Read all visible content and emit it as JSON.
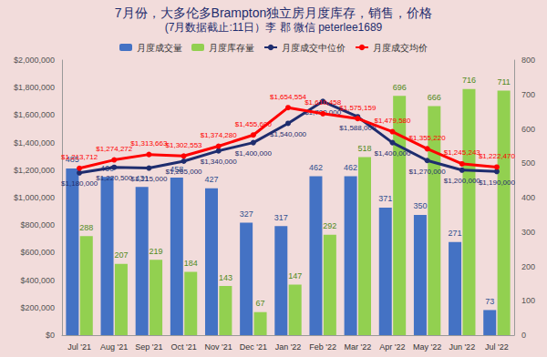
{
  "chart_data": {
    "type": "bar",
    "title": "7月份，大多伦多Brampton独立房月度库存，销售，价格",
    "subtitle": "(7月数据截止:11日）李 郡 微信 peterlee1689",
    "categories": [
      "Jul '21",
      "Aug '21",
      "Sep '21",
      "Oct '21",
      "Nov '21",
      "Dec '21",
      "Jan '22",
      "Feb '22",
      "Mar '22",
      "Apr '22",
      "May '22",
      "Jun '22",
      "Jul '22"
    ],
    "legend": "top",
    "grid": false,
    "data_labels": true,
    "series": [
      {
        "name": "月度成交量",
        "type": "bar",
        "axis": "y2",
        "color": "#4472c4",
        "values": [
          485,
          460,
          431,
          458,
          427,
          327,
          317,
          462,
          462,
          371,
          350,
          271,
          73
        ]
      },
      {
        "name": "月度库存量",
        "type": "bar",
        "axis": "y2",
        "color": "#92d050",
        "values": [
          288,
          207,
          219,
          184,
          143,
          67,
          147,
          292,
          518,
          696,
          666,
          716,
          711
        ]
      },
      {
        "name": "月度成交中位价",
        "type": "line",
        "color": "#1f2d6e",
        "marker": "circle",
        "values": [
          1180000,
          1220500,
          1215000,
          1265000,
          1340000,
          1400000,
          1540000,
          1700000,
          1588000,
          1400000,
          1270000,
          1200000,
          1190000
        ],
        "value_labels": [
          "$1,180,000",
          "$1,220,500",
          "$1,215,000",
          "$1,265,000",
          "$1,340,000",
          "$1,400,000",
          "$1,540,000",
          "$1,700,000",
          "$1,588,000",
          "$1,400,000",
          "$1,270,000",
          "$1,200,000",
          "$1,190,000"
        ]
      },
      {
        "name": "月度成交均价",
        "type": "line",
        "color": "#ff0000",
        "marker": "circle",
        "values": [
          1213712,
          1274272,
          1313663,
          1302553,
          1374280,
          1455600,
          1654554,
          1610458,
          1575159,
          1479580,
          1355220,
          1245243,
          1222470
        ],
        "value_labels": [
          "$1,213,712",
          "$1,274,272",
          "$1,313,663",
          "$1,302,553",
          "$1,374,280",
          "$1,455,600",
          "$1,654,554",
          "$1,610,458",
          "$1,575,159",
          "$1,479,580",
          "$1,355,220",
          "$1,245,243",
          "$1,222,470"
        ]
      }
    ],
    "ylim": [
      0,
      2000000
    ],
    "yticks": [
      {
        "value": 0,
        "label": "$0"
      },
      {
        "value": 200000,
        "label": "$200,000"
      },
      {
        "value": 400000,
        "label": "$400,000"
      },
      {
        "value": 600000,
        "label": "$600,000"
      },
      {
        "value": 800000,
        "label": "$800,000"
      },
      {
        "value": 1000000,
        "label": "$1,000,000"
      },
      {
        "value": 1200000,
        "label": "$1,200,000"
      },
      {
        "value": 1400000,
        "label": "$1,400,000"
      },
      {
        "value": 1600000,
        "label": "$1,600,000"
      },
      {
        "value": 1800000,
        "label": "$1,800,000"
      },
      {
        "value": 2000000,
        "label": "$2,000,000"
      }
    ],
    "y2lim": [
      0,
      800
    ],
    "y2ticks": [
      0,
      100,
      200,
      300,
      400,
      500,
      600,
      700,
      800
    ]
  }
}
